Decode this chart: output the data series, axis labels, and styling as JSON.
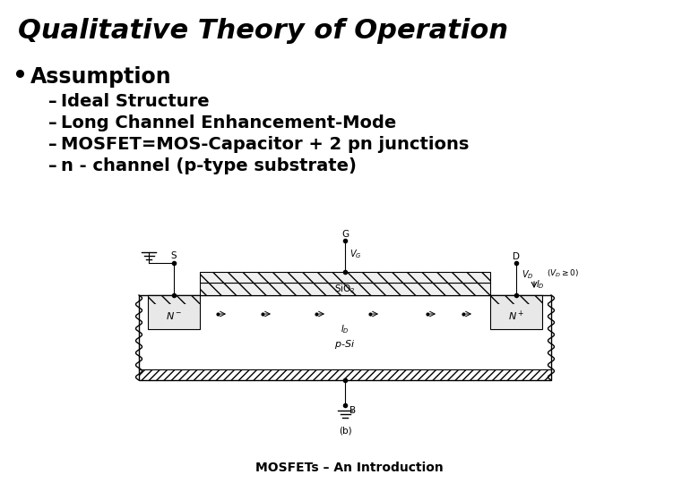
{
  "title": "Qualitative Theory of Operation",
  "bullet": "Assumption",
  "sub_bullets": [
    "Ideal Structure",
    "Long Channel Enhancement-Mode",
    "MOSFET=MOS-Capacitor + 2 pn junctions",
    "n - channel (p-type substrate)"
  ],
  "footer": "MOSFETs – An Introduction",
  "bg_color": "#ffffff",
  "text_color": "#000000",
  "title_fontsize": 22,
  "bullet_fontsize": 17,
  "sub_fontsize": 14,
  "footer_fontsize": 10
}
